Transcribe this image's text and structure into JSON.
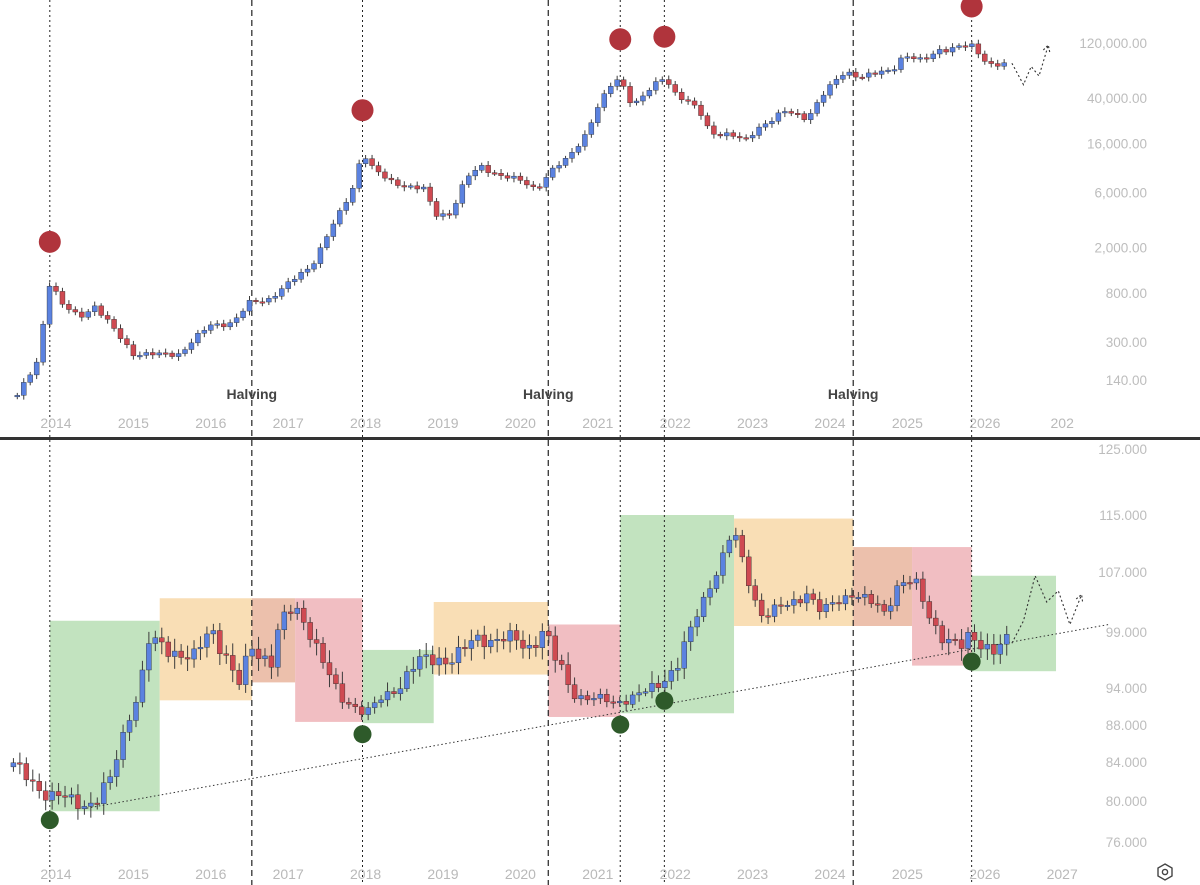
{
  "colors": {
    "up": "#5b82e0",
    "down": "#cf4a52",
    "wick": "#3b3b3b",
    "peak": "#b0343c",
    "trough": "#2e5a2a",
    "green_zone": "#b7deb4",
    "orange_zone": "#f8d8a8",
    "red_zone": "#efb3b7",
    "overlap_zone": "#e9b59e",
    "separator": "#333333"
  },
  "reset_icon": "hexagon-gear-icon",
  "chart_data": [
    {
      "type": "candlestick",
      "panel": "top",
      "scale": "log",
      "title": "",
      "xlabel": "",
      "ylabel": "",
      "ylim": [
        95,
        250000
      ],
      "x_ticks": [
        "2014",
        "2015",
        "2016",
        "2017",
        "2018",
        "2019",
        "2020",
        "2021",
        "2022",
        "2023",
        "2024",
        "2025",
        "2026",
        "202"
      ],
      "y_ticks": [
        {
          "value": 140,
          "label": "140.00"
        },
        {
          "value": 300,
          "label": "300.00"
        },
        {
          "value": 800,
          "label": "800.00"
        },
        {
          "value": 2000,
          "label": "2,000.00"
        },
        {
          "value": 6000,
          "label": "6,000.00"
        },
        {
          "value": 16000,
          "label": "16,000.00"
        },
        {
          "value": 40000,
          "label": "40,000.00"
        },
        {
          "value": 120000,
          "label": "120,000.00"
        }
      ],
      "halvings": [
        {
          "date": 2016.53,
          "label": "Halving"
        },
        {
          "date": 2020.36,
          "label": "Halving"
        },
        {
          "date": 2024.3,
          "label": "Halving"
        }
      ],
      "cycle_lines": [
        2013.92,
        2017.96,
        2021.29,
        2021.86,
        2025.83
      ],
      "peaks": [
        2013.92,
        2017.96,
        2021.29,
        2021.86,
        2025.83
      ],
      "monthly_close_anchors": [
        [
          2013.5,
          100
        ],
        [
          2013.75,
          200
        ],
        [
          2013.92,
          1000
        ],
        [
          2014.1,
          600
        ],
        [
          2014.3,
          500
        ],
        [
          2014.5,
          620
        ],
        [
          2014.75,
          380
        ],
        [
          2015.0,
          240
        ],
        [
          2015.3,
          230
        ],
        [
          2015.6,
          240
        ],
        [
          2015.75,
          300
        ],
        [
          2016.0,
          420
        ],
        [
          2016.3,
          450
        ],
        [
          2016.5,
          650
        ],
        [
          2016.75,
          720
        ],
        [
          2017.0,
          950
        ],
        [
          2017.3,
          1400
        ],
        [
          2017.5,
          2500
        ],
        [
          2017.7,
          4300
        ],
        [
          2017.83,
          6500
        ],
        [
          2017.96,
          14000
        ],
        [
          2018.1,
          9500
        ],
        [
          2018.3,
          7500
        ],
        [
          2018.5,
          7000
        ],
        [
          2018.75,
          6400
        ],
        [
          2018.9,
          3800
        ],
        [
          2019.1,
          4000
        ],
        [
          2019.3,
          8000
        ],
        [
          2019.5,
          10000
        ],
        [
          2019.75,
          8500
        ],
        [
          2020.0,
          7500
        ],
        [
          2020.2,
          6500
        ],
        [
          2020.4,
          9300
        ],
        [
          2020.6,
          11500
        ],
        [
          2020.83,
          19000
        ],
        [
          2021.0,
          33000
        ],
        [
          2021.2,
          55000
        ],
        [
          2021.29,
          58000
        ],
        [
          2021.45,
          35000
        ],
        [
          2021.6,
          42000
        ],
        [
          2021.86,
          61000
        ],
        [
          2022.0,
          45000
        ],
        [
          2022.3,
          31000
        ],
        [
          2022.45,
          20000
        ],
        [
          2022.7,
          19500
        ],
        [
          2022.9,
          16500
        ],
        [
          2023.1,
          23000
        ],
        [
          2023.4,
          30000
        ],
        [
          2023.7,
          27000
        ],
        [
          2023.9,
          42000
        ],
        [
          2024.2,
          68000
        ],
        [
          2024.4,
          62000
        ],
        [
          2024.6,
          64000
        ],
        [
          2024.8,
          70000
        ],
        [
          2024.95,
          96000
        ],
        [
          2025.2,
          82000
        ],
        [
          2025.4,
          105000
        ],
        [
          2025.6,
          110000
        ],
        [
          2025.83,
          112000
        ],
        [
          2025.95,
          92000
        ],
        [
          2026.1,
          78000
        ],
        [
          2026.3,
          80000
        ]
      ],
      "projection": [
        [
          2026.35,
          80000
        ],
        [
          2026.5,
          52000
        ],
        [
          2026.6,
          75000
        ],
        [
          2026.7,
          62000
        ],
        [
          2026.82,
          115000
        ]
      ]
    },
    {
      "type": "candlestick",
      "panel": "bottom",
      "scale": "linear",
      "title": "",
      "xlabel": "",
      "ylabel": "",
      "ylim": [
        73,
        126
      ],
      "x_ticks": [
        "2014",
        "2015",
        "2016",
        "2017",
        "2018",
        "2019",
        "2020",
        "2021",
        "2022",
        "2023",
        "2024",
        "2025",
        "2026",
        "2027"
      ],
      "y_ticks": [
        {
          "value": 76,
          "label": "76.000"
        },
        {
          "value": 80,
          "label": "80.000"
        },
        {
          "value": 84,
          "label": "84.000"
        },
        {
          "value": 88,
          "label": "88.000"
        },
        {
          "value": 94,
          "label": "94.000"
        },
        {
          "value": 99,
          "label": "99.000"
        },
        {
          "value": 107,
          "label": "107.000"
        },
        {
          "value": 115,
          "label": "115.000"
        },
        {
          "value": 125,
          "label": "125.000"
        }
      ],
      "zones": [
        {
          "from": 2013.92,
          "to": 2015.34,
          "low": 79.0,
          "high": 100.5,
          "color": "green"
        },
        {
          "from": 2015.34,
          "to": 2016.53,
          "low": 92.0,
          "high": 103.5,
          "color": "orange"
        },
        {
          "from": 2016.53,
          "to": 2017.09,
          "low": 94.5,
          "high": 103.5,
          "color": "overlap"
        },
        {
          "from": 2017.09,
          "to": 2017.96,
          "low": 88.5,
          "high": 103.5,
          "color": "red"
        },
        {
          "from": 2017.96,
          "to": 2018.88,
          "low": 88.3,
          "high": 97.4,
          "color": "green"
        },
        {
          "from": 2018.88,
          "to": 2020.36,
          "low": 95.2,
          "high": 103.0,
          "color": "orange"
        },
        {
          "from": 2020.36,
          "to": 2021.29,
          "low": 89.3,
          "high": 100.0,
          "color": "red"
        },
        {
          "from": 2021.29,
          "to": 2022.76,
          "low": 89.9,
          "high": 115.0,
          "color": "green"
        },
        {
          "from": 2022.76,
          "to": 2024.3,
          "low": 99.8,
          "high": 114.5,
          "color": "orange"
        },
        {
          "from": 2024.3,
          "to": 2025.06,
          "low": 99.8,
          "high": 110.5,
          "color": "overlap"
        },
        {
          "from": 2025.06,
          "to": 2025.83,
          "low": 96.0,
          "high": 110.5,
          "color": "red"
        },
        {
          "from": 2025.83,
          "to": 2026.92,
          "low": 95.5,
          "high": 106.5,
          "color": "green"
        }
      ],
      "troughs": [
        2013.92,
        2017.96,
        2021.29,
        2021.86,
        2025.83
      ],
      "trendline": [
        [
          2014.4,
          79.3
        ],
        [
          2027.6,
          100.0
        ]
      ],
      "monthly_close_anchors": [
        [
          2013.45,
          83.5
        ],
        [
          2013.7,
          82.0
        ],
        [
          2013.92,
          80.5
        ],
        [
          2014.2,
          80.0
        ],
        [
          2014.5,
          79.8
        ],
        [
          2014.7,
          82.0
        ],
        [
          2015.0,
          91.0
        ],
        [
          2015.2,
          98.0
        ],
        [
          2015.5,
          97.5
        ],
        [
          2015.8,
          96.5
        ],
        [
          2016.0,
          99.5
        ],
        [
          2016.2,
          97.0
        ],
        [
          2016.35,
          94.0
        ],
        [
          2016.53,
          97.5
        ],
        [
          2016.8,
          96.5
        ],
        [
          2016.9,
          100.5
        ],
        [
          2017.1,
          102.0
        ],
        [
          2017.3,
          99.0
        ],
        [
          2017.5,
          95.5
        ],
        [
          2017.7,
          92.0
        ],
        [
          2017.9,
          91.0
        ],
        [
          2018.0,
          90.0
        ],
        [
          2018.3,
          93.0
        ],
        [
          2018.6,
          96.0
        ],
        [
          2018.9,
          96.5
        ],
        [
          2019.2,
          97.0
        ],
        [
          2019.5,
          98.5
        ],
        [
          2019.8,
          98.5
        ],
        [
          2020.1,
          97.5
        ],
        [
          2020.3,
          99.5
        ],
        [
          2020.45,
          96.5
        ],
        [
          2020.7,
          93.0
        ],
        [
          2020.9,
          92.5
        ],
        [
          2021.2,
          91.5
        ],
        [
          2021.5,
          93.0
        ],
        [
          2021.7,
          93.5
        ],
        [
          2021.86,
          95.0
        ],
        [
          2022.0,
          96.0
        ],
        [
          2022.2,
          99.0
        ],
        [
          2022.4,
          104.0
        ],
        [
          2022.6,
          109.0
        ],
        [
          2022.75,
          113.0
        ],
        [
          2022.9,
          107.0
        ],
        [
          2023.1,
          101.5
        ],
        [
          2023.3,
          102.0
        ],
        [
          2023.5,
          102.5
        ],
        [
          2023.7,
          104.5
        ],
        [
          2023.9,
          101.5
        ],
        [
          2024.1,
          103.0
        ],
        [
          2024.3,
          104.5
        ],
        [
          2024.5,
          103.0
        ],
        [
          2024.7,
          101.5
        ],
        [
          2024.9,
          106.0
        ],
        [
          2025.1,
          105.5
        ],
        [
          2025.3,
          100.5
        ],
        [
          2025.5,
          98.5
        ],
        [
          2025.7,
          97.5
        ],
        [
          2025.83,
          98.5
        ],
        [
          2026.0,
          98.0
        ],
        [
          2026.15,
          97.5
        ],
        [
          2026.3,
          98.0
        ]
      ],
      "projection": [
        [
          2026.35,
          98.0
        ],
        [
          2026.5,
          100.5
        ],
        [
          2026.65,
          106.5
        ],
        [
          2026.8,
          103.0
        ],
        [
          2026.95,
          104.5
        ],
        [
          2027.1,
          100.0
        ],
        [
          2027.25,
          104.0
        ]
      ]
    }
  ]
}
